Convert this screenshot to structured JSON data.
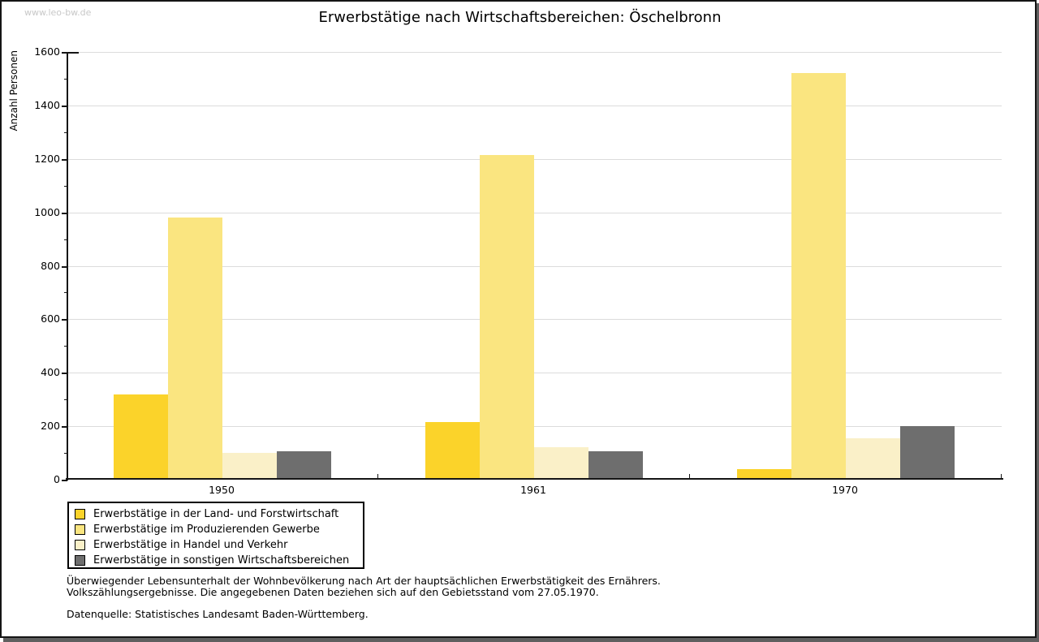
{
  "watermark": "www.leo-bw.de",
  "chart_data": {
    "type": "bar",
    "title": "Erwerbstätige nach Wirtschaftsbereichen: Öschelbronn",
    "xlabel": "",
    "ylabel": "Anzahl Personen",
    "ylim": [
      0,
      1600
    ],
    "ytick_step": 200,
    "yminor_step": 100,
    "grid": true,
    "legend_position": "bottom-left",
    "categories": [
      "1950",
      "1961",
      "1970"
    ],
    "series": [
      {
        "name": "Erwerbstätige in der Land- und Forstwirtschaft",
        "color": "#fbd32a",
        "values": [
          320,
          215,
          40
        ]
      },
      {
        "name": "Erwerbstätige im Produzierenden Gewerbe",
        "color": "#fae580",
        "values": [
          980,
          1215,
          1520
        ]
      },
      {
        "name": "Erwerbstätige in Handel und Verkehr",
        "color": "#faf0c8",
        "values": [
          100,
          120,
          155
        ]
      },
      {
        "name": "Erwerbstätige in sonstigen Wirtschaftsbereichen",
        "color": "#6e6e6e",
        "values": [
          105,
          105,
          200
        ]
      }
    ]
  },
  "footnotes": {
    "line1": "Überwiegender Lebensunterhalt der Wohnbevölkerung nach Art der hauptsächlichen Erwerbstätigkeit des Ernährers.",
    "line2": "Volkszählungsergebnisse. Die angegebenen Daten beziehen sich auf den Gebietsstand vom 27.05.1970.",
    "source": "Datenquelle: Statistisches Landesamt Baden-Württemberg."
  },
  "colors": {
    "grid": "#dcdcdc",
    "axis": "#151515",
    "watermark": "#c8c8c8",
    "frame_shadow": "#5f5f5f",
    "background": "#ffffff"
  }
}
